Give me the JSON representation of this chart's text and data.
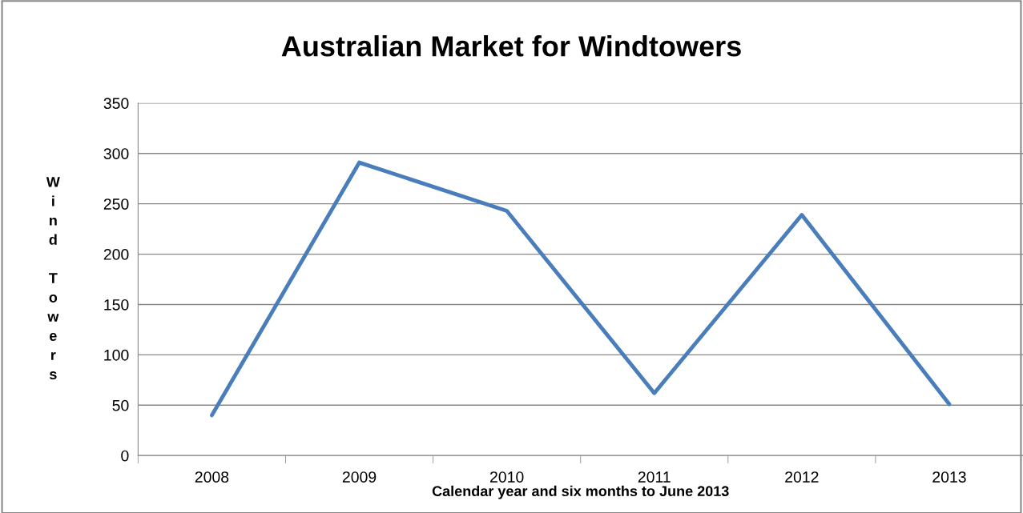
{
  "chart_data": {
    "type": "line",
    "title": "Australian Market for Windtowers",
    "xlabel": "Calendar year and six months to June 2013",
    "ylabel": "Wind Towers",
    "categories": [
      "2008",
      "2009",
      "2010",
      "2011",
      "2012",
      "2013"
    ],
    "series": [
      {
        "color": "#4a7ebb",
        "values": [
          40,
          291,
          243,
          62,
          239,
          51
        ]
      }
    ],
    "ylim": [
      0,
      350
    ],
    "yticks": [
      0,
      50,
      100,
      150,
      200,
      250,
      300,
      350
    ],
    "grid": "y",
    "legend": false,
    "marker": "none",
    "line_style": "solid"
  }
}
